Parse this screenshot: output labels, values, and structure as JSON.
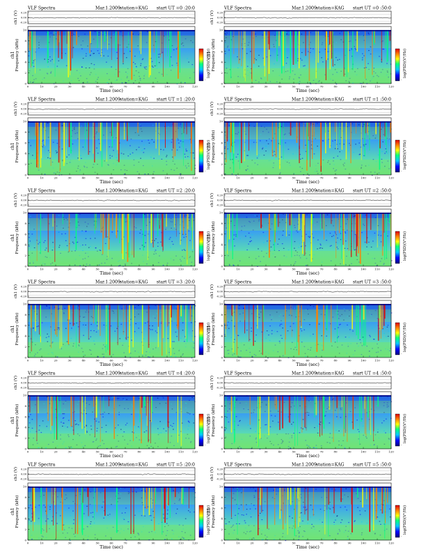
{
  "panels": [
    {
      "left_title": "VLF Spectra",
      "date": "Mar.1.2009",
      "station": "station=KAG",
      "start": "start  UT =0 :20:0"
    },
    {
      "left_title": "VLF Spectra",
      "date": "Mar.1.2009",
      "station": "station=KAG",
      "start": "start  UT =0 :50:0"
    },
    {
      "left_title": "VLF Spectra",
      "date": "Mar.1.2009",
      "station": "station=KAG",
      "start": "start  UT =1 :20:0"
    },
    {
      "left_title": "VLF Spectra",
      "date": "Mar.1.2009",
      "station": "station=KAG",
      "start": "start  UT =1 :50:0"
    },
    {
      "left_title": "VLF Spectra",
      "date": "Mar.1.2009",
      "station": "station=KAG",
      "start": "start  UT =2 :20:0"
    },
    {
      "left_title": "VLF Spectra",
      "date": "Mar.1.2009",
      "station": "station=KAG",
      "start": "start  UT =2 :50:0"
    },
    {
      "left_title": "VLF Spectra",
      "date": "Mar.1.2009",
      "station": "station=KAG",
      "start": "start  UT =3 :20:0"
    },
    {
      "left_title": "VLF Spectra",
      "date": "Mar.1.2009",
      "station": "station=KAG",
      "start": "start  UT =3 :50:0"
    },
    {
      "left_title": "VLF Spectra",
      "date": "Mar.1.2009",
      "station": "station=KAG",
      "start": "start  UT =4 :20:0"
    },
    {
      "left_title": "VLF Spectra",
      "date": "Mar.1.2009",
      "station": "station=KAG",
      "start": "start  UT =4 :50:0"
    },
    {
      "left_title": "VLF Spectra",
      "date": "Mar.1.2009",
      "station": "station=KAG",
      "start": "start  UT =5 :20:0"
    },
    {
      "left_title": "VLF Spectra",
      "date": "Mar.1.2009",
      "station": "station=KAG",
      "start": "start  UT =5 :50:0"
    }
  ],
  "labels": {
    "xlabel": "Time  (sec)",
    "ylabel_spec": "Frequency  (kHz)",
    "ylabel_ch": "ch1",
    "ylabel_amp": "ch1 (V)",
    "cbar_label": "log(PSD)(V²/Hz)"
  },
  "chart_data": {
    "type": "heatmap",
    "panel_count": 12,
    "x_ticks": [
      0,
      10,
      20,
      30,
      40,
      50,
      60,
      70,
      80,
      90,
      100,
      110,
      120
    ],
    "xlim": [
      0,
      120
    ],
    "y_ticks": [
      0,
      2,
      4,
      6,
      8,
      10
    ],
    "ylim": [
      0,
      10
    ],
    "amp_ticks": [
      "0.20",
      "0.00",
      "-0.20"
    ],
    "colormap": [
      "#00007f",
      "#0000ff",
      "#00c8ff",
      "#00ff80",
      "#ffff00",
      "#ff8000",
      "#e00000"
    ],
    "grid": false
  }
}
